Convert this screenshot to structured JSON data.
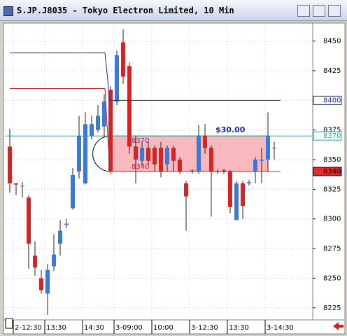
{
  "window_title": "S.JP.J8035 - Tokyo Electron Limited, 10 Min",
  "chart_data": {
    "type": "candlestick",
    "categories": [
      null,
      "2-12:30",
      null,
      null,
      null,
      null,
      "13:30",
      null,
      null,
      null,
      null,
      null,
      "14:30",
      null,
      null,
      null,
      null,
      "3-09:00",
      null,
      null,
      null,
      null,
      null,
      "10:00",
      null,
      null,
      null,
      null,
      null,
      "3-12:30",
      null,
      null,
      null,
      null,
      null,
      "13:30",
      null,
      null,
      null,
      null,
      null,
      "3-14:30",
      null
    ],
    "open": [
      8361,
      8330,
      8328,
      8318,
      8269,
      8250,
      8237,
      8260,
      8279,
      8295,
      8309,
      8340,
      8330,
      8370,
      8375,
      8378,
      8409,
      8399,
      8449,
      8429,
      8361,
      8349,
      8360,
      8360,
      8360,
      8346,
      8360,
      8350,
      8330,
      8340,
      8340,
      8370,
      8360,
      8340,
      8341,
      8340,
      8299,
      8330,
      8330,
      8340,
      8349,
      8350,
      8360
    ],
    "high": [
      8376,
      8330,
      8331,
      8320,
      8281,
      8257,
      8262,
      8287,
      8299,
      8300,
      8343,
      8387,
      8390,
      8387,
      8396,
      8405,
      8412,
      8442,
      8460,
      8432,
      8370,
      8365,
      8365,
      8362,
      8365,
      8362,
      8362,
      8352,
      8332,
      8342,
      8379,
      8380,
      8362,
      8342,
      8342,
      8341,
      8332,
      8332,
      8333,
      8352,
      8360,
      8390,
      8365
    ],
    "low": [
      8322,
      8320,
      8318,
      8258,
      8252,
      8237,
      8219,
      8256,
      8269,
      8292,
      8308,
      8334,
      8329,
      8367,
      8373,
      8370,
      8338,
      8396,
      8414,
      8355,
      8330,
      8345,
      8345,
      8340,
      8335,
      8340,
      8340,
      8338,
      8290,
      8338,
      8338,
      8355,
      8302,
      8338,
      8338,
      8305,
      8299,
      8300,
      8328,
      8330,
      8330,
      8340,
      8350
    ],
    "close": [
      8330,
      8329,
      8328,
      8279,
      8259,
      8240,
      8257,
      8270,
      8290,
      8296,
      8337,
      8370,
      8380,
      8380,
      8387,
      8399,
      8340,
      8438,
      8420,
      8361,
      8350,
      8360,
      8349,
      8346,
      8340,
      8360,
      8349,
      8340,
      8319,
      8341,
      8370,
      8360,
      8340,
      8340,
      8340,
      8310,
      8330,
      8311,
      8331,
      8350,
      8350,
      8370,
      8360
    ],
    "up_color": "#3b78d8",
    "down_color": "#d42424",
    "ylim": [
      8216,
      8464
    ],
    "yticks": [
      8225,
      8250,
      8275,
      8300,
      8325,
      8350,
      8375,
      8400,
      8425,
      8450
    ],
    "upper_line": {
      "values": [
        8440,
        8400
      ],
      "color": "#1c2aa0"
    },
    "lower_line": {
      "values": [
        8410,
        8340
      ],
      "color": "#c02030"
    },
    "cursor_line": {
      "value": 8370,
      "color": "#3aa0a0"
    },
    "range_box": {
      "top": 8370,
      "bottom": 8340,
      "top_label": "8370",
      "bottom_label": "8340",
      "spread_label": "$30.00"
    },
    "price_tags": [
      {
        "value": 8400,
        "label": "8400"
      },
      {
        "value": 8370,
        "label": "8370"
      },
      {
        "value": 8340,
        "label": "8340"
      }
    ]
  }
}
